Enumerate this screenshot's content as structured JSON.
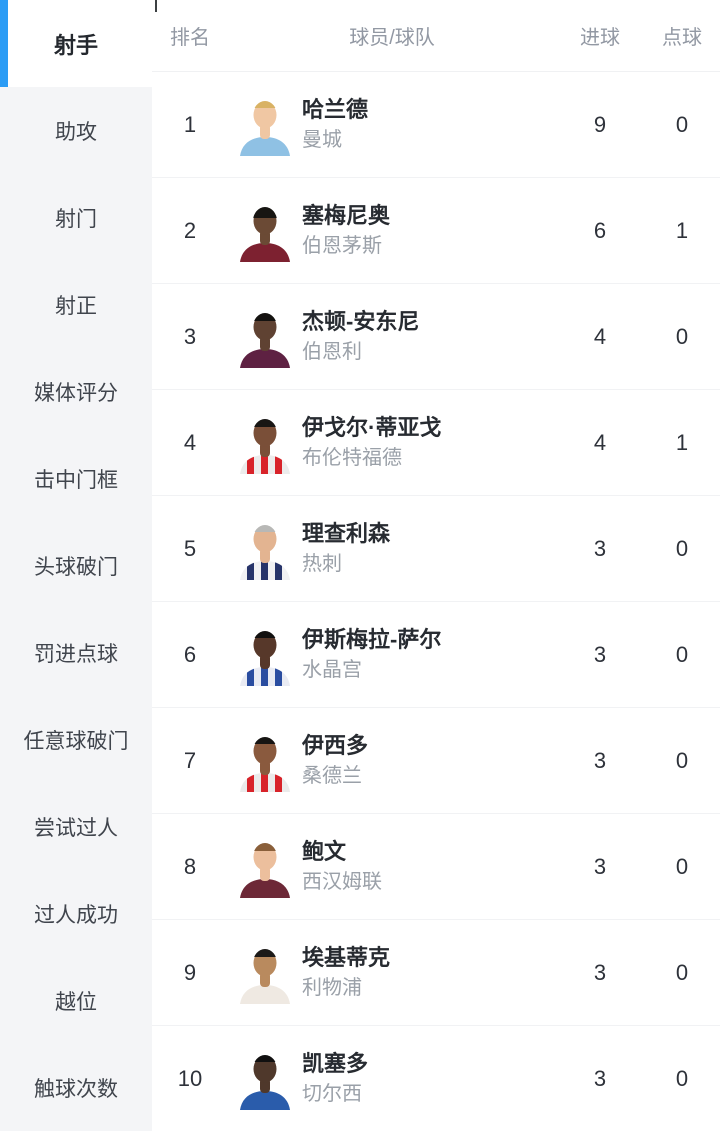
{
  "accent_color": "#2b9cf5",
  "sidebar_bg": "#f4f5f7",
  "sidebar": {
    "items": [
      {
        "label": "射手",
        "active": true
      },
      {
        "label": "助攻",
        "active": false
      },
      {
        "label": "射门",
        "active": false
      },
      {
        "label": "射正",
        "active": false
      },
      {
        "label": "媒体评分",
        "active": false
      },
      {
        "label": "击中门框",
        "active": false
      },
      {
        "label": "头球破门",
        "active": false
      },
      {
        "label": "罚进点球",
        "active": false
      },
      {
        "label": "任意球破门",
        "active": false
      },
      {
        "label": "尝试过人",
        "active": false
      },
      {
        "label": "过人成功",
        "active": false
      },
      {
        "label": "越位",
        "active": false
      },
      {
        "label": "触球次数",
        "active": false
      }
    ]
  },
  "table": {
    "headers": {
      "rank": "排名",
      "player": "球员/球队",
      "goals": "进球",
      "penalties": "点球"
    },
    "rows": [
      {
        "rank": "1",
        "name": "哈兰德",
        "team": "曼城",
        "goals": "9",
        "penalties": "0",
        "avatar": {
          "skin": "#f0c7a3",
          "hair": "#d9b264",
          "hair_h": 10,
          "shirt": "#8fc1e4",
          "stripe": ""
        }
      },
      {
        "rank": "2",
        "name": "塞梅尼奥",
        "team": "伯恩茅斯",
        "goals": "6",
        "penalties": "1",
        "avatar": {
          "skin": "#6b4a35",
          "hair": "#171512",
          "hair_h": 14,
          "shirt": "#7d2130",
          "stripe": ""
        }
      },
      {
        "rank": "3",
        "name": "杰顿-安东尼",
        "team": "伯恩利",
        "goals": "4",
        "penalties": "0",
        "avatar": {
          "skin": "#5f4232",
          "hair": "#141210",
          "hair_h": 11,
          "shirt": "#5e2142",
          "stripe": ""
        }
      },
      {
        "rank": "4",
        "name": "伊戈尔·蒂亚戈",
        "team": "布伦特福德",
        "goals": "4",
        "penalties": "1",
        "avatar": {
          "skin": "#7a4f38",
          "hair": "#181614",
          "hair_h": 11,
          "shirt": "#ececec",
          "stripe": "#d8232a"
        }
      },
      {
        "rank": "5",
        "name": "理查利森",
        "team": "热刺",
        "goals": "3",
        "penalties": "0",
        "avatar": {
          "skin": "#e3b491",
          "hair": "#b8b8b6",
          "hair_h": 10,
          "shirt": "#f1f1f3",
          "stripe": "#27346a"
        }
      },
      {
        "rank": "6",
        "name": "伊斯梅拉-萨尔",
        "team": "水晶宫",
        "goals": "3",
        "penalties": "0",
        "avatar": {
          "skin": "#57382a",
          "hair": "#121110",
          "hair_h": 10,
          "shirt": "#e9ebf3",
          "stripe": "#2a4da0"
        }
      },
      {
        "rank": "7",
        "name": "伊西多",
        "team": "桑德兰",
        "goals": "3",
        "penalties": "0",
        "avatar": {
          "skin": "#8a5a3e",
          "hair": "#171513",
          "hair_h": 10,
          "shirt": "#ebebeb",
          "stripe": "#d8232a"
        }
      },
      {
        "rank": "8",
        "name": "鲍文",
        "team": "西汉姆联",
        "goals": "3",
        "penalties": "0",
        "avatar": {
          "skin": "#ecbf9d",
          "hair": "#8a5f3a",
          "hair_h": 11,
          "shirt": "#6d2837",
          "stripe": ""
        }
      },
      {
        "rank": "9",
        "name": "埃基蒂克",
        "team": "利物浦",
        "goals": "3",
        "penalties": "0",
        "avatar": {
          "skin": "#b98a5e",
          "hair": "#1c1a18",
          "hair_h": 11,
          "shirt": "#efe9e2",
          "stripe": ""
        }
      },
      {
        "rank": "10",
        "name": "凯塞多",
        "team": "切尔西",
        "goals": "3",
        "penalties": "0",
        "avatar": {
          "skin": "#4f382b",
          "hair": "#111010",
          "hair_h": 10,
          "shirt": "#2a5cab",
          "stripe": ""
        }
      }
    ]
  }
}
